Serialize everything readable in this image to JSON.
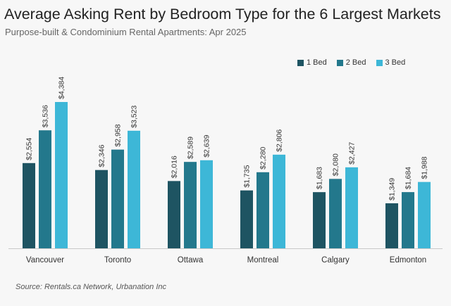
{
  "title": "Average Asking Rent by Bedroom Type for the 6 Largest Markets",
  "subtitle": "Purpose-built & Condominium Rental Apartments: Apr 2025",
  "source": "Source: Rentals.ca Network, Urbanation Inc",
  "chart_data": {
    "type": "bar",
    "categories": [
      "Vancouver",
      "Toronto",
      "Ottawa",
      "Montreal",
      "Calgary",
      "Edmonton"
    ],
    "series": [
      {
        "name": "1 Bed",
        "color": "#1e5462",
        "values": [
          2554,
          2346,
          2016,
          1735,
          1683,
          1349
        ],
        "labels": [
          "$2,554",
          "$2,346",
          "$2,016",
          "$1,735",
          "$1,683",
          "$1,349"
        ]
      },
      {
        "name": "2 Bed",
        "color": "#23788c",
        "values": [
          3536,
          2958,
          2589,
          2280,
          2080,
          1684
        ],
        "labels": [
          "$3,536",
          "$2,958",
          "$2,589",
          "$2,280",
          "$2,080",
          "$1,684"
        ]
      },
      {
        "name": "3 Bed",
        "color": "#3db7d7",
        "values": [
          4384,
          3523,
          2639,
          2806,
          2427,
          1988
        ],
        "labels": [
          "$4,384",
          "$3,523",
          "$2,639",
          "$2,806",
          "$2,427",
          "$1,988"
        ]
      }
    ],
    "ylim": [
      0,
      4384
    ],
    "legend_position": "top-right",
    "grid": false
  }
}
